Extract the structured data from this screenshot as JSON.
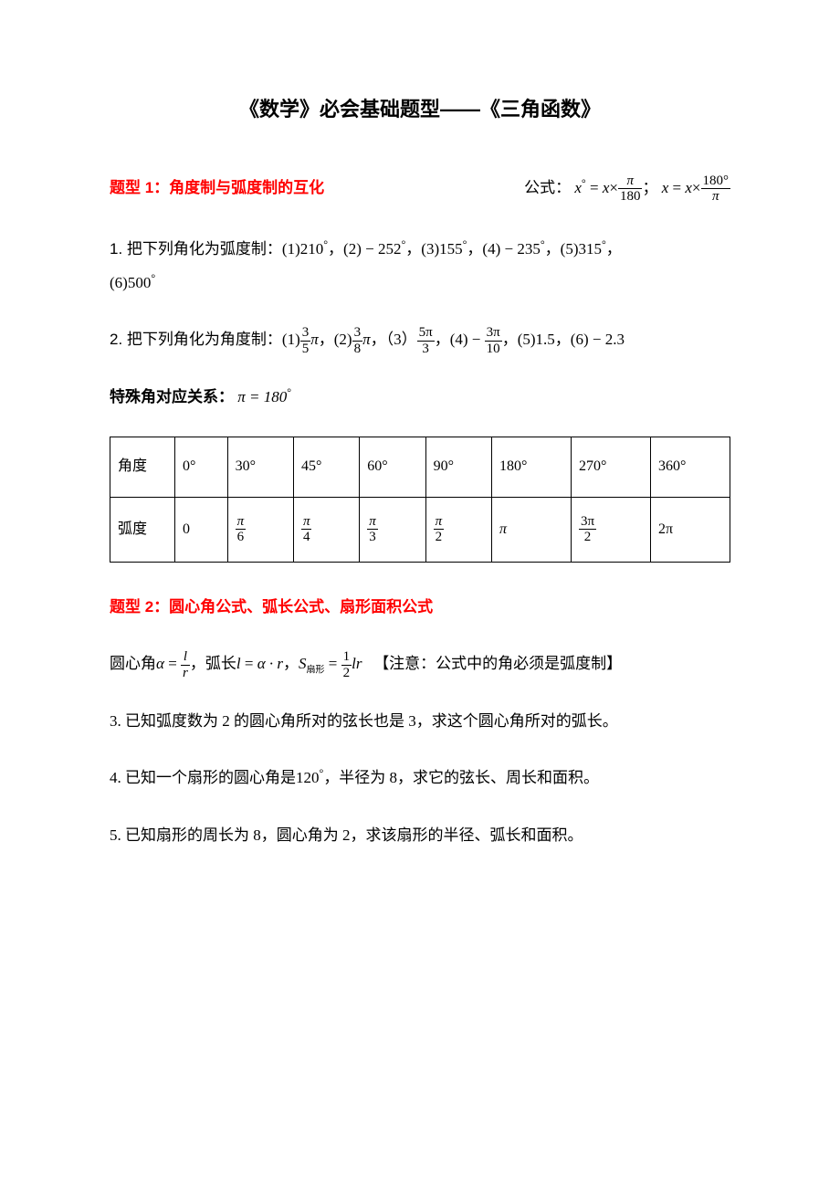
{
  "title": "《数学》必会基础题型——《三角函数》",
  "section1": {
    "head": "题型 1：角度制与弧度制的互化",
    "formula_label": "公式：",
    "formula1_lhs": "x",
    "formula1_eq": " = ",
    "formula1_x": "x",
    "formula1_times": "×",
    "formula1_num": "π",
    "formula1_den": "180",
    "formula_sep": "；",
    "formula2_lhs": "x",
    "formula2_eq": " = ",
    "formula2_x": "x",
    "formula2_times": "×",
    "formula2_num": "180°",
    "formula2_den": "π"
  },
  "q1": {
    "prefix": "1. 把下列角化为弧度制：",
    "p1": "(1)210",
    "p2": "(2) − 252",
    "p3": "(3)155",
    "p4": "(4) − 235",
    "p5": "(5)315",
    "p6": "(6)500"
  },
  "q2": {
    "prefix": "2. 把下列角化为角度制：",
    "a1_lead": "(1)",
    "a1_num": "3",
    "a1_den": "5",
    "a1_tail": "π",
    "a2_lead": "(2)",
    "a2_num": "3",
    "a2_den": "8",
    "a2_tail": "π",
    "a3_lead": "（3）",
    "a3_num": "5π",
    "a3_den": "3",
    "a4_lead": "(4) − ",
    "a4_num": "3π",
    "a4_den": "10",
    "a5": "(5)1.5",
    "a6": "(6) − 2.3"
  },
  "special": {
    "label": "特殊角对应关系：",
    "rel": "π = 180"
  },
  "table": {
    "row1_label": "角度",
    "row2_label": "弧度",
    "deg": [
      "0°",
      "30°",
      "45°",
      "60°",
      "90°",
      "180°",
      "270°",
      "360°"
    ],
    "rad_plain": {
      "c0": "0",
      "c5": "π",
      "c7": "2π"
    },
    "rad_frac": {
      "c1_num": "π",
      "c1_den": "6",
      "c2_num": "π",
      "c2_den": "4",
      "c3_num": "π",
      "c3_den": "3",
      "c4_num": "π",
      "c4_den": "2",
      "c6_num": "3π",
      "c6_den": "2"
    }
  },
  "section2": {
    "head": "题型 2：圆心角公式、弧长公式、扇形面积公式",
    "line_a": "圆心角",
    "alpha": "α",
    "eq": " = ",
    "f1_num": "l",
    "f1_den": "r",
    "line_b": "弧长",
    "l": "l",
    "f2_rhs": "α · r",
    "S": "S",
    "S_sub": "扇形",
    "f3_num": "1",
    "f3_den": "2",
    "f3_tail": "lr",
    "note": "【注意：公式中的角必须是弧度制】"
  },
  "q3": "3. 已知弧度数为 2 的圆心角所对的弦长也是 3，求这个圆心角所对的弧长。",
  "q4": {
    "a": "4. 已知一个扇形的圆心角是",
    "ang": "120",
    "b": "，半径为 8，求它的弦长、周长和面积。"
  },
  "q5": "5. 已知扇形的周长为 8，圆心角为 2，求该扇形的半径、弧长和面积。"
}
